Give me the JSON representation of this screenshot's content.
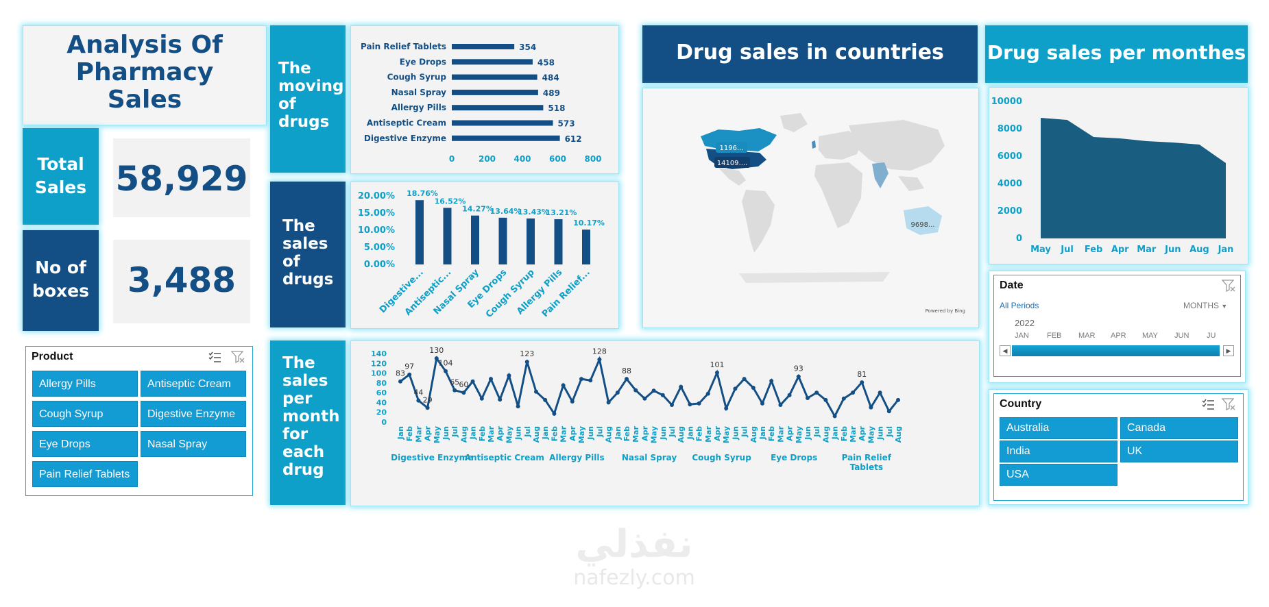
{
  "title": "Analysis Of Pharmacy Sales",
  "kpis": {
    "total_sales_label": "Total Sales",
    "total_sales_value": "58,929",
    "boxes_label": "No of boxes",
    "boxes_value": "3,488"
  },
  "section_labels": {
    "moving": "The moving of drugs",
    "sales": "The sales of drugs",
    "per_month": "The sales per month for each drug"
  },
  "headers": {
    "countries": "Drug sales in countries",
    "months": "Drug sales per monthes"
  },
  "product_slicer": {
    "title": "Product",
    "items": [
      "Allergy Pills",
      "Antiseptic Cream",
      "Cough Syrup",
      "Digestive Enzyme",
      "Eye Drops",
      "Nasal Spray",
      "Pain Relief Tablets"
    ]
  },
  "country_slicer": {
    "title": "Country",
    "items": [
      "Australia",
      "Canada",
      "India",
      "UK",
      "USA"
    ]
  },
  "date_timeline": {
    "title": "Date",
    "periods": "All Periods",
    "level": "MONTHS",
    "year": "2022",
    "months": [
      "JAN",
      "FEB",
      "MAR",
      "APR",
      "MAY",
      "JUN",
      "JU"
    ]
  },
  "map": {
    "labels": [
      "1196...",
      "14109....",
      "9698..."
    ],
    "powered": "Powered by Bing"
  },
  "watermark": {
    "arabic": "نفذلي",
    "latin": "nafezly.com"
  },
  "colors": {
    "dark": "#134f85",
    "light": "#0ea0c8",
    "area": "#195e80"
  },
  "chart_data": [
    {
      "type": "bar",
      "orientation": "horizontal",
      "categories": [
        "Pain Relief Tablets",
        "Eye Drops",
        "Cough Syrup",
        "Nasal Spray",
        "Allergy Pills",
        "Antiseptic Cream",
        "Digestive Enzyme"
      ],
      "values": [
        354,
        458,
        484,
        489,
        518,
        573,
        612
      ],
      "xlim": [
        0,
        800
      ],
      "xticks": [
        "0",
        "200",
        "400",
        "600",
        "800"
      ]
    },
    {
      "type": "bar",
      "categories": [
        "Digestive...",
        "Antiseptic...",
        "Nasal Spray",
        "Eye Drops",
        "Cough Syrup",
        "Allergy Pills",
        "Pain Relief..."
      ],
      "values": [
        18.76,
        16.52,
        14.27,
        13.64,
        13.43,
        13.21,
        10.17
      ],
      "value_labels": [
        "18.76%",
        "16.52%",
        "14.27%",
        "13.64%",
        "13.43%",
        "13.21%",
        "10.17%"
      ],
      "ylim": [
        0,
        20
      ],
      "yticks": [
        "0.00%",
        "5.00%",
        "10.00%",
        "15.00%",
        "20.00%"
      ]
    },
    {
      "type": "area",
      "categories": [
        "May",
        "Jul",
        "Feb",
        "Apr",
        "Mar",
        "Jun",
        "Aug",
        "Jan"
      ],
      "values": [
        8800,
        8650,
        7400,
        7300,
        7100,
        7000,
        6850,
        5500
      ],
      "ylim": [
        0,
        10000
      ],
      "yticks": [
        "0",
        "2000",
        "4000",
        "6000",
        "8000",
        "10000"
      ]
    },
    {
      "type": "line",
      "ylim": [
        0,
        140
      ],
      "yticks": [
        "0",
        "20",
        "40",
        "60",
        "80",
        "100",
        "120",
        "140"
      ],
      "groups": [
        {
          "name": "Digestive Enzyme",
          "months": [
            "Jan",
            "Feb",
            "Mar",
            "Apr",
            "May",
            "Jun",
            "Jul",
            "Aug"
          ],
          "values": [
            83,
            97,
            44,
            29,
            130,
            104,
            65,
            60
          ]
        },
        {
          "name": "Antiseptic Cream",
          "months": [
            "Jan",
            "Feb",
            "Mar",
            "Apr",
            "May",
            "Jun",
            "Jul",
            "Aug"
          ],
          "values": [
            83,
            48,
            88,
            46,
            95,
            32,
            123,
            62
          ]
        },
        {
          "name": "Allergy Pills",
          "months": [
            "Jan",
            "Feb",
            "Mar",
            "Apr",
            "May",
            "Jun",
            "Jul",
            "Aug"
          ],
          "values": [
            45,
            17,
            75,
            42,
            88,
            85,
            128,
            40
          ]
        },
        {
          "name": "Nasal Spray",
          "months": [
            "Jan",
            "Feb",
            "Mar",
            "Apr",
            "May",
            "Jun",
            "Jul",
            "Aug"
          ],
          "values": [
            60,
            88,
            65,
            48,
            64,
            55,
            35,
            72
          ]
        },
        {
          "name": "Cough Syrup",
          "months": [
            "Jan",
            "Feb",
            "Mar",
            "Apr",
            "May",
            "Jun",
            "Jul",
            "Aug"
          ],
          "values": [
            36,
            38,
            58,
            101,
            28,
            68,
            88,
            70
          ]
        },
        {
          "name": "Eye Drops",
          "months": [
            "Jan",
            "Feb",
            "Mar",
            "Apr",
            "May",
            "Jun",
            "Jul",
            "Aug"
          ],
          "values": [
            38,
            84,
            35,
            55,
            93,
            49,
            60,
            45
          ]
        },
        {
          "name": "Pain Relief Tablets",
          "months": [
            "Jan",
            "Feb",
            "Mar",
            "Apr",
            "May",
            "Jun",
            "Jul",
            "Aug"
          ],
          "values": [
            12,
            48,
            60,
            81,
            30,
            60,
            22,
            45
          ]
        }
      ],
      "labelled_points": [
        {
          "group": 0,
          "index": 0,
          "label": "83"
        },
        {
          "group": 0,
          "index": 1,
          "label": "97"
        },
        {
          "group": 0,
          "index": 2,
          "label": "44"
        },
        {
          "group": 0,
          "index": 3,
          "label": "29"
        },
        {
          "group": 0,
          "index": 4,
          "label": "130"
        },
        {
          "group": 0,
          "index": 5,
          "label": "104"
        },
        {
          "group": 0,
          "index": 6,
          "label": "65"
        },
        {
          "group": 0,
          "index": 7,
          "label": "60"
        },
        {
          "group": 1,
          "index": 6,
          "label": "123"
        },
        {
          "group": 2,
          "index": 6,
          "label": "128"
        },
        {
          "group": 3,
          "index": 1,
          "label": "88"
        },
        {
          "group": 4,
          "index": 3,
          "label": "101"
        },
        {
          "group": 5,
          "index": 4,
          "label": "93"
        },
        {
          "group": 6,
          "index": 3,
          "label": "81"
        }
      ]
    }
  ]
}
